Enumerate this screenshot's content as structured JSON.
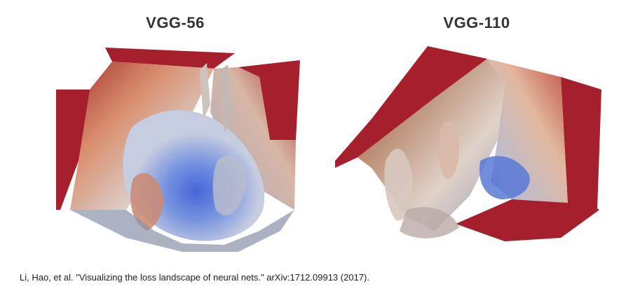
{
  "figures": [
    {
      "title": "VGG-56",
      "surface_icon": "loss-landscape-surface"
    },
    {
      "title": "VGG-110",
      "surface_icon": "loss-landscape-surface"
    }
  ],
  "caption": "Li, Hao, et al. \"Visualizing the loss landscape of neural nets.\" arXiv:1712.09913 (2017).",
  "colors": {
    "high_loss": "#a51f2d",
    "mid_loss": "#dcb9a5",
    "low_loss": "#5d7cd6",
    "title_text": "#333333"
  }
}
